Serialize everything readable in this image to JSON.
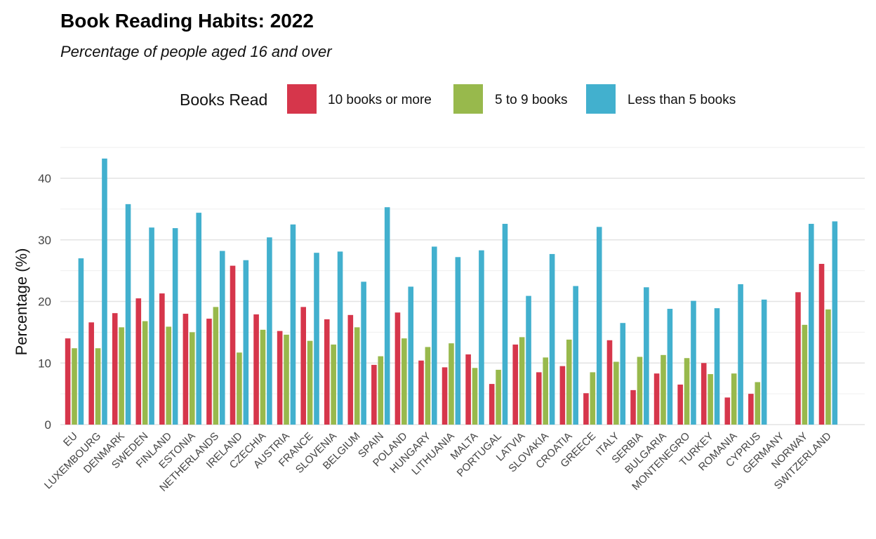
{
  "chart_data": {
    "type": "bar",
    "title": "Book Reading Habits: 2022",
    "subtitle": "Percentage of people aged 16 and over",
    "xlabel": "",
    "ylabel": "Percentage (%)",
    "ylim": [
      0,
      45
    ],
    "yticks": [
      0,
      10,
      20,
      30,
      40
    ],
    "grid": true,
    "legend": {
      "title": "Books Read",
      "placement": "top"
    },
    "categories": [
      "EU",
      "LUXEMBOURG",
      "DENMARK",
      "SWEDEN",
      "FINLAND",
      "ESTONIA",
      "NETHERLANDS",
      "IRELAND",
      "CZECHIA",
      "AUSTRIA",
      "FRANCE",
      "SLOVENIA",
      "BELGIUM",
      "SPAIN",
      "POLAND",
      "HUNGARY",
      "LITHUANIA",
      "MALTA",
      "PORTUGAL",
      "LATVIA",
      "SLOVAKIA",
      "CROATIA",
      "GREECE",
      "ITALY",
      "SERBIA",
      "BULGARIA",
      "MONTENEGRO",
      "TURKEY",
      "ROMANIA",
      "CYPRUS",
      "GERMANY",
      "NORWAY",
      "SWITZERLAND"
    ],
    "series": [
      {
        "name": "10 books or more",
        "color": "#d6364b",
        "values": [
          14.0,
          16.6,
          18.1,
          20.5,
          21.3,
          18.0,
          17.2,
          25.8,
          17.9,
          15.2,
          19.1,
          17.1,
          17.8,
          9.7,
          18.2,
          10.4,
          9.3,
          11.4,
          6.6,
          13.0,
          8.5,
          9.5,
          5.1,
          13.7,
          5.6,
          8.3,
          6.5,
          10.0,
          4.4,
          5.0,
          null,
          21.5,
          26.1
        ]
      },
      {
        "name": "5 to 9 books",
        "color": "#98b94c",
        "values": [
          12.4,
          12.4,
          15.8,
          16.8,
          15.9,
          15.0,
          19.1,
          11.7,
          15.4,
          14.6,
          13.6,
          13.0,
          15.8,
          11.1,
          14.0,
          12.6,
          13.2,
          9.2,
          8.9,
          14.2,
          10.9,
          13.8,
          8.5,
          10.2,
          11.0,
          11.3,
          10.8,
          8.2,
          8.3,
          6.9,
          null,
          16.2,
          18.7
        ]
      },
      {
        "name": "Less than 5 books",
        "color": "#42b0ce",
        "values": [
          27.0,
          43.2,
          35.8,
          32.0,
          31.9,
          34.4,
          28.2,
          26.7,
          30.4,
          32.5,
          27.9,
          28.1,
          23.2,
          35.3,
          22.4,
          28.9,
          27.2,
          28.3,
          32.6,
          20.9,
          27.7,
          22.5,
          32.1,
          16.5,
          22.3,
          18.8,
          20.1,
          18.9,
          22.8,
          20.3,
          null,
          32.6,
          33.0
        ]
      }
    ]
  }
}
